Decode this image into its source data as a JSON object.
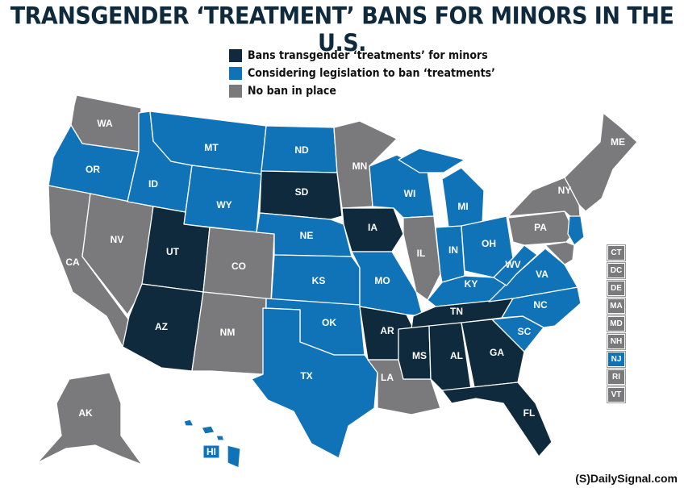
{
  "title": "TRANSGENDER ‘TREATMENT’ BANS FOR MINORS IN THE U.S.",
  "colors": {
    "ban": "#0f2a3c",
    "considering": "#1073b8",
    "none": "#7a7a7c"
  },
  "legend": [
    {
      "key": "ban",
      "label": "Bans transgender ‘treatments’ for minors"
    },
    {
      "key": "considering",
      "label": "Considering legislation to ban ‘treatments’"
    },
    {
      "key": "none",
      "label": "No ban in place"
    }
  ],
  "states": {
    "WA": "none",
    "OR": "considering",
    "CA": "none",
    "NV": "none",
    "ID": "considering",
    "MT": "considering",
    "WY": "considering",
    "UT": "ban",
    "AZ": "ban",
    "CO": "none",
    "NM": "none",
    "ND": "considering",
    "SD": "ban",
    "NE": "considering",
    "KS": "considering",
    "OK": "considering",
    "TX": "considering",
    "MN": "none",
    "IA": "ban",
    "MO": "considering",
    "AR": "ban",
    "LA": "none",
    "WI": "considering",
    "IL": "none",
    "MI": "considering",
    "IN": "considering",
    "OH": "considering",
    "KY": "considering",
    "TN": "ban",
    "MS": "ban",
    "AL": "ban",
    "GA": "ban",
    "FL": "ban",
    "SC": "considering",
    "NC": "considering",
    "VA": "considering",
    "WV": "considering",
    "PA": "none",
    "NY": "none",
    "ME": "none",
    "AK": "none",
    "HI": "considering",
    "NJ": "considering",
    "NE_states": "none"
  },
  "small_states": [
    {
      "code": "CT",
      "status": "none"
    },
    {
      "code": "DC",
      "status": "none"
    },
    {
      "code": "DE",
      "status": "none"
    },
    {
      "code": "MA",
      "status": "none"
    },
    {
      "code": "MD",
      "status": "none"
    },
    {
      "code": "NH",
      "status": "none"
    },
    {
      "code": "NJ",
      "status": "considering"
    },
    {
      "code": "RI",
      "status": "none"
    },
    {
      "code": "VT",
      "status": "none"
    }
  ],
  "credit": "(S)DailySignal.com"
}
